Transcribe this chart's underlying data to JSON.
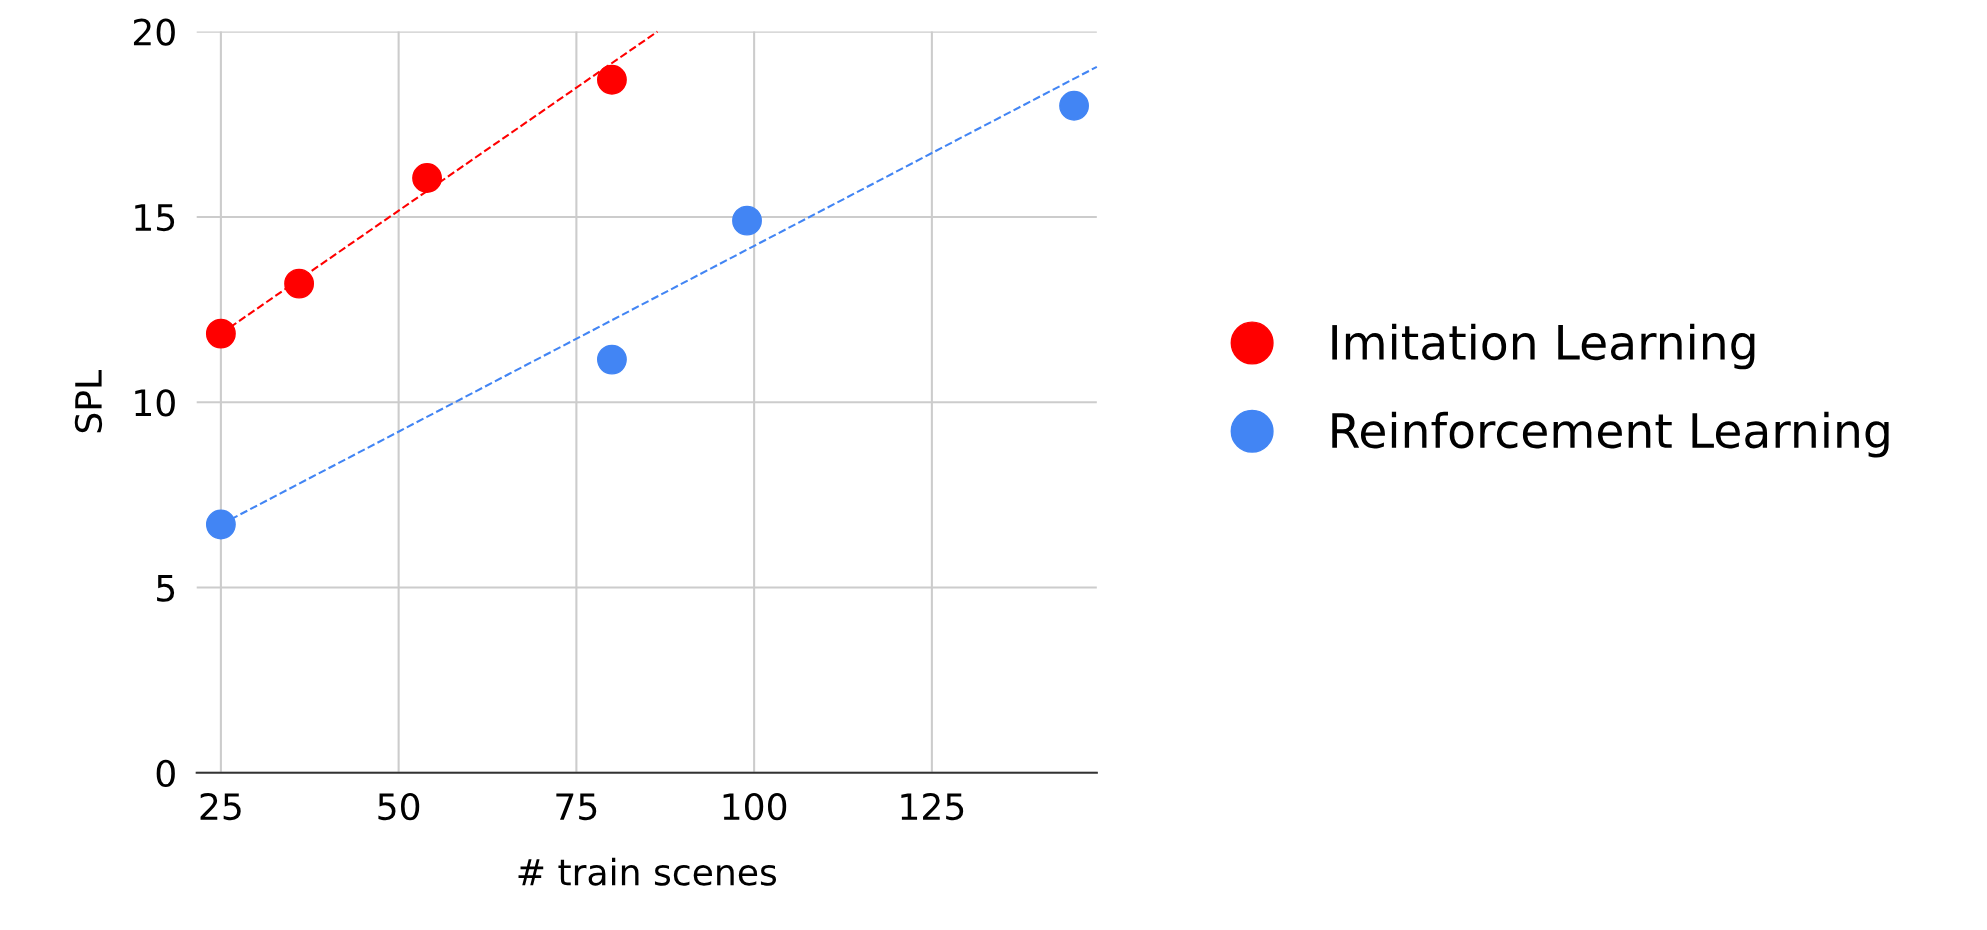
{
  "chart_data": {
    "type": "scatter",
    "xlabel": "# train scenes",
    "ylabel": "SPL",
    "xlim": [
      21.6,
      148.2
    ],
    "xticks": [
      25,
      50,
      75,
      100,
      125
    ],
    "ylim": [
      0,
      20
    ],
    "yticks": [
      0,
      5,
      10,
      15,
      20
    ],
    "grid": true,
    "legend": "right",
    "marker": "circle",
    "series": [
      {
        "name": "Imitation Learning",
        "color": "#ff0000",
        "x": [
          25,
          36,
          54,
          80
        ],
        "values": [
          11.85,
          13.2,
          16.05,
          18.7
        ]
      },
      {
        "name": "Reinforcement Learning",
        "color": "#4285f4",
        "x": [
          25,
          80,
          99,
          145
        ],
        "values": [
          6.7,
          11.15,
          14.9,
          18
        ]
      },
      {
        "type": "line",
        "marker": "none",
        "color": "#ff0000",
        "line_style": "dashed",
        "x": [
          25,
          86.4
        ],
        "values": [
          11.85,
          20
        ]
      },
      {
        "type": "line",
        "marker": "none",
        "color": "#4285f4",
        "line_style": "dashed",
        "x": [
          25,
          148.2
        ],
        "values": [
          6.7,
          19.05
        ]
      }
    ]
  }
}
